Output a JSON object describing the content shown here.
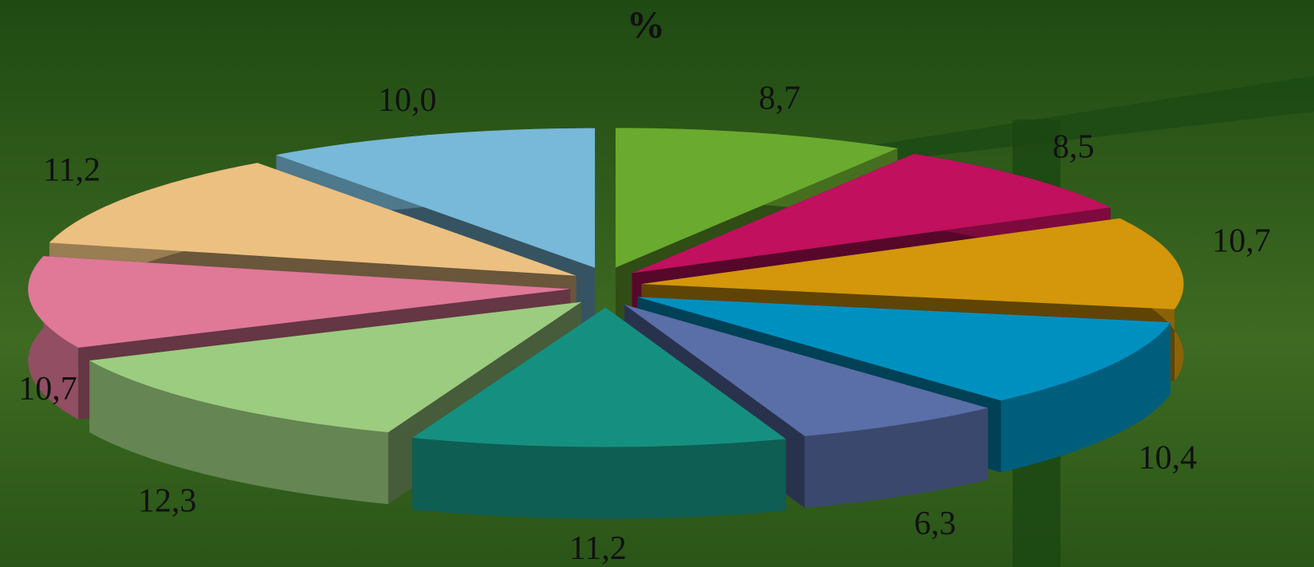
{
  "chart_data": {
    "type": "pie3d",
    "title": "%",
    "values": [
      8.7,
      8.5,
      10.7,
      10.4,
      6.3,
      11.2,
      12.3,
      10.7,
      11.2,
      10.0
    ],
    "value_labels": [
      "8,7",
      "8,5",
      "10,7",
      "10,4",
      "6,3",
      "11,2",
      "12,3",
      "10,7",
      "11,2",
      "10,0"
    ],
    "colors": [
      "#6aaa2e",
      "#c0105e",
      "#d4960a",
      "#0090c0",
      "#5a6ea8",
      "#159080",
      "#9ccc80",
      "#e07898",
      "#ecc080",
      "#78b8d8"
    ]
  }
}
